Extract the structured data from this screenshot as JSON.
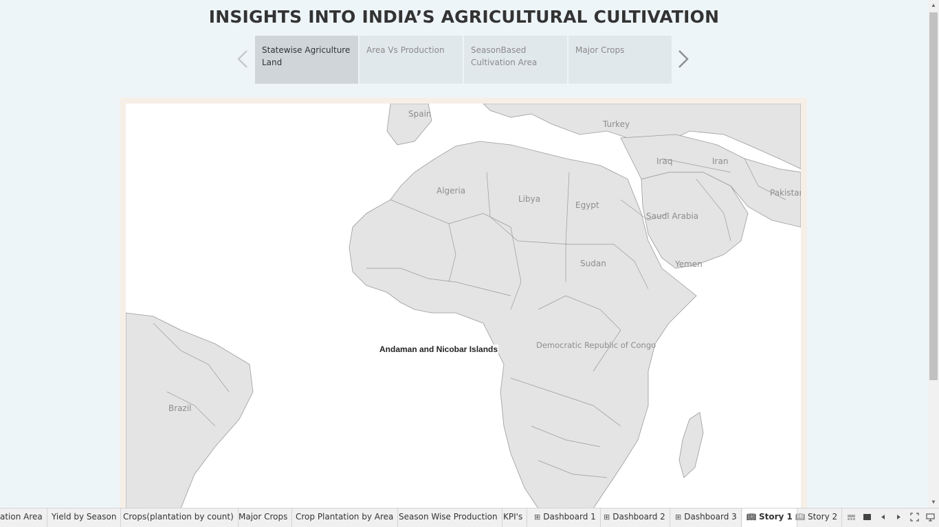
{
  "story": {
    "title": "INSIGHTS INTO INDIA’S AGRICULTURAL CULTIVATION",
    "points": [
      {
        "label": "Statewise Agriculture Land",
        "active": true
      },
      {
        "label": "Area Vs Production",
        "active": false
      },
      {
        "label": "SeasonBased Cultivation Area",
        "active": false
      },
      {
        "label": "Major Crops",
        "active": false
      }
    ]
  },
  "map": {
    "countries": [
      "Spain",
      "Turkey",
      "Iraq",
      "Iran",
      "Algeria",
      "Libya",
      "Egypt",
      "Saudi Arabia",
      "Pakistan",
      "Sudan",
      "Yemen",
      "Democratic Republic of Congo",
      "Brazil"
    ],
    "mark_label": "Andaman and Nicobar Islands",
    "colors": {
      "land": "#e4e4e4",
      "water": "#ffffff",
      "border": "#9a9a9a",
      "frame": "#f6efe7"
    }
  },
  "tabs": [
    {
      "label": "ation Area",
      "icon": ""
    },
    {
      "label": "Yield by Season",
      "icon": ""
    },
    {
      "label": "Crops(plantation by count)",
      "icon": ""
    },
    {
      "label": "Major Crops",
      "icon": ""
    },
    {
      "label": "Crop Plantation by Area",
      "icon": ""
    },
    {
      "label": "Season Wise Production",
      "icon": ""
    },
    {
      "label": "KPI's",
      "icon": ""
    },
    {
      "label": "Dashboard 1",
      "icon": "dashboard-icon"
    },
    {
      "label": "Dashboard 2",
      "icon": "dashboard-icon"
    },
    {
      "label": "Dashboard 3",
      "icon": "dashboard-icon"
    },
    {
      "label": "Story 1",
      "icon": "story-icon",
      "active": true
    },
    {
      "label": "Story 2",
      "icon": "story-icon"
    }
  ]
}
